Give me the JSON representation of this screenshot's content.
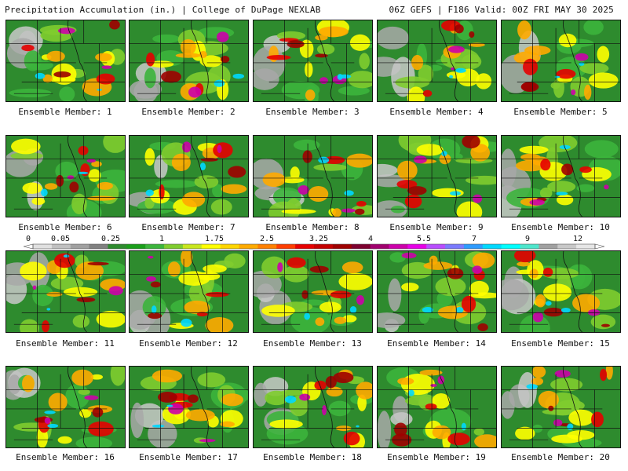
{
  "header": {
    "title": "Precipitation Accumulation (in.) | College of DuPage NEXLAB",
    "run_info": "06Z GEFS | F186 Valid: 00Z FRI MAY 30 2025"
  },
  "colorbar": {
    "labels": [
      "0",
      "0.05",
      "0.25",
      "1",
      "1.75",
      "2.5",
      "3.25",
      "4",
      "5.5",
      "7",
      "9",
      "12"
    ],
    "colors": [
      "#e0e0e0",
      "#c0c0c0",
      "#a0a0a0",
      "#808080",
      "#2e8b2e",
      "#1a9e1a",
      "#3cb43c",
      "#7fcc2f",
      "#c8e61e",
      "#ffff00",
      "#ffd500",
      "#ffaa00",
      "#ff7f00",
      "#ff3d00",
      "#e60000",
      "#c40000",
      "#9e0000",
      "#7d0030",
      "#a0006e",
      "#cc00aa",
      "#e600e6",
      "#b84dff",
      "#7a7aff",
      "#2e9bff",
      "#00d8ff",
      "#00ffff",
      "#4de6cc",
      "#a0a0a0",
      "#c8c8c8",
      "#e6e6e6"
    ]
  },
  "panels": [
    {
      "caption": "Ensemble Member: 1"
    },
    {
      "caption": "Ensemble Member: 2"
    },
    {
      "caption": "Ensemble Member: 3"
    },
    {
      "caption": "Ensemble Member: 4"
    },
    {
      "caption": "Ensemble Member: 5"
    },
    {
      "caption": "Ensemble Member: 6"
    },
    {
      "caption": "Ensemble Member: 7"
    },
    {
      "caption": "Ensemble Member: 8"
    },
    {
      "caption": "Ensemble Member: 9"
    },
    {
      "caption": "Ensemble Member: 10"
    },
    {
      "caption": "Ensemble Member: 11"
    },
    {
      "caption": "Ensemble Member: 12"
    },
    {
      "caption": "Ensemble Member: 13"
    },
    {
      "caption": "Ensemble Member: 14"
    },
    {
      "caption": "Ensemble Member: 15"
    },
    {
      "caption": "Ensemble Member: 16"
    },
    {
      "caption": "Ensemble Member: 17"
    },
    {
      "caption": "Ensemble Member: 18"
    },
    {
      "caption": "Ensemble Member: 19"
    },
    {
      "caption": "Ensemble Member: 20"
    }
  ]
}
